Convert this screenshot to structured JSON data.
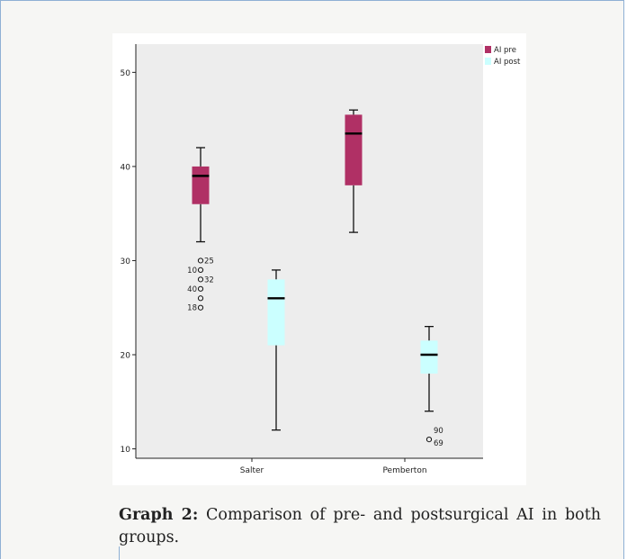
{
  "figure": {
    "caption_label": "Graph 2:",
    "caption_text": " Comparison of pre- and postsurgical AI in both groups."
  },
  "colors": {
    "ai_pre": "#b03065",
    "ai_post": "#cbffff",
    "plot_background": "#ededed",
    "median_line": "#000000"
  },
  "chart_data": {
    "type": "boxplot",
    "title": "",
    "xlabel": "",
    "ylabel": "",
    "ylim": [
      9,
      53
    ],
    "yticks": [
      10,
      20,
      30,
      40,
      50
    ],
    "categories": [
      "Salter",
      "Pemberton"
    ],
    "legend": {
      "placement": "top-right"
    },
    "grid": false,
    "series": [
      {
        "name": "AI pre",
        "color": "#b03065",
        "boxes": [
          {
            "category": "Salter",
            "whisker_low": 32,
            "q1": 36,
            "median": 39,
            "q3": 40,
            "whisker_high": 42,
            "outliers": [
              {
                "value": 30,
                "label": "25"
              },
              {
                "value": 29,
                "label": "10"
              },
              {
                "value": 28,
                "label": "32"
              },
              {
                "value": 27,
                "label": "40"
              },
              {
                "value": 26,
                "label": ""
              },
              {
                "value": 25,
                "label": "18"
              }
            ]
          },
          {
            "category": "Pemberton",
            "whisker_low": 33,
            "q1": 38,
            "median": 43.5,
            "q3": 45.5,
            "whisker_high": 46,
            "outliers": []
          }
        ]
      },
      {
        "name": "AI post",
        "color": "#cbffff",
        "boxes": [
          {
            "category": "Salter",
            "whisker_low": 12,
            "q1": 21,
            "median": 26,
            "q3": 28,
            "whisker_high": 29,
            "outliers": []
          },
          {
            "category": "Pemberton",
            "whisker_low": 14,
            "q1": 18,
            "median": 20,
            "q3": 21.5,
            "whisker_high": 23,
            "outliers": [
              {
                "value": 11,
                "label": "90"
              },
              {
                "value": 11,
                "label": "69"
              }
            ]
          }
        ]
      }
    ]
  }
}
